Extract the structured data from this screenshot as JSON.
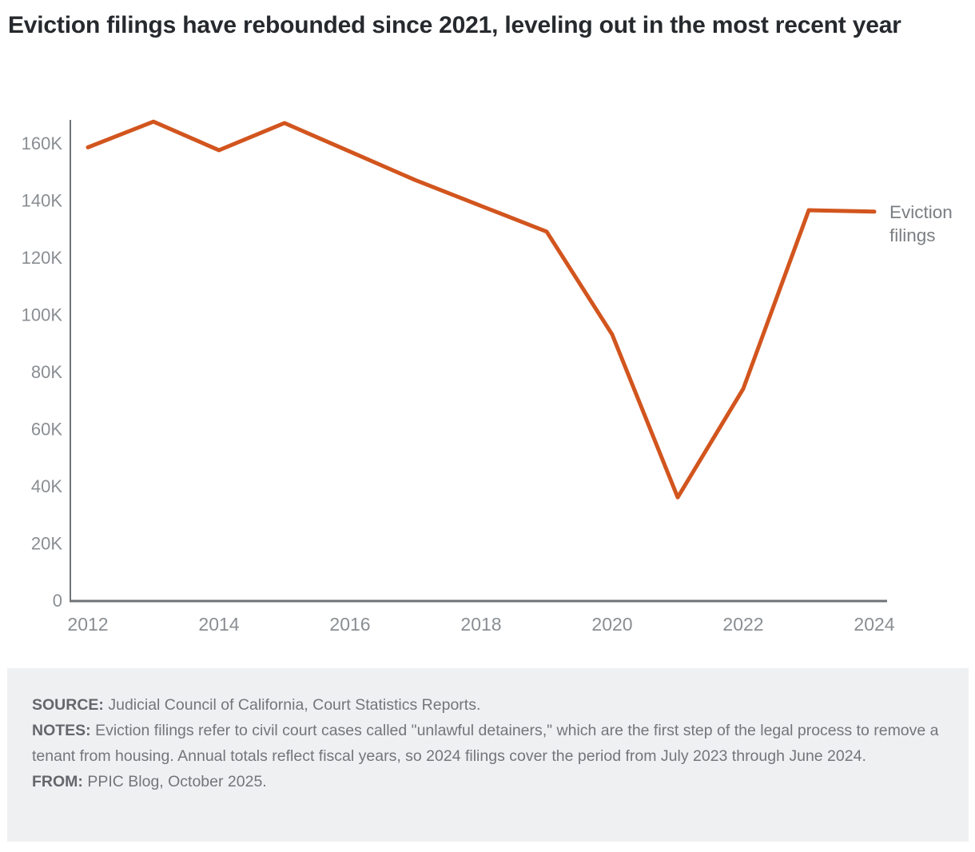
{
  "header": {
    "title": "Eviction filings have rebounded since 2021, leveling out in the most recent year"
  },
  "chart_data": {
    "type": "line",
    "title": "Eviction filings have rebounded since 2021, leveling out in the most recent year",
    "x": [
      2012,
      2013,
      2014,
      2015,
      2016,
      2017,
      2018,
      2019,
      2020,
      2021,
      2022,
      2023,
      2024
    ],
    "series": [
      {
        "name": "Eviction filings",
        "color": "#d2551e",
        "values": [
          158500,
          167500,
          157500,
          167000,
          157000,
          147000,
          138000,
          129000,
          93000,
          36000,
          74000,
          136500,
          136000
        ]
      }
    ],
    "legend": "Eviction filings",
    "legend_position": "right-of-line-end",
    "xlabel": "",
    "ylabel": "",
    "ylim": [
      0,
      160000
    ],
    "xticks": [
      2012,
      2014,
      2016,
      2018,
      2020,
      2022,
      2024
    ],
    "yticks": [
      {
        "label": "0",
        "value": 0
      },
      {
        "label": "20K",
        "value": 20000
      },
      {
        "label": "40K",
        "value": 40000
      },
      {
        "label": "60K",
        "value": 60000
      },
      {
        "label": "80K",
        "value": 80000
      },
      {
        "label": "100K",
        "value": 100000
      },
      {
        "label": "120K",
        "value": 120000
      },
      {
        "label": "140K",
        "value": 140000
      },
      {
        "label": "160K",
        "value": 160000
      }
    ],
    "grid": false,
    "axis_color": "#6f7377",
    "tick_label_color": "#8a8e92"
  },
  "footer": {
    "source_label": "SOURCE:",
    "source_text": "Judicial Council of California, Court Statistics Reports.",
    "notes_label": "NOTES:",
    "notes_text": "Eviction filings refer to civil court cases called \"unlawful detainers,\" which are the first step of the legal process to remove a tenant from housing. Annual totals reflect fiscal years, so 2024 filings cover the period from July 2023 through June 2024.",
    "from_label": "FROM:",
    "from_text": "PPIC Blog, October 2025."
  }
}
